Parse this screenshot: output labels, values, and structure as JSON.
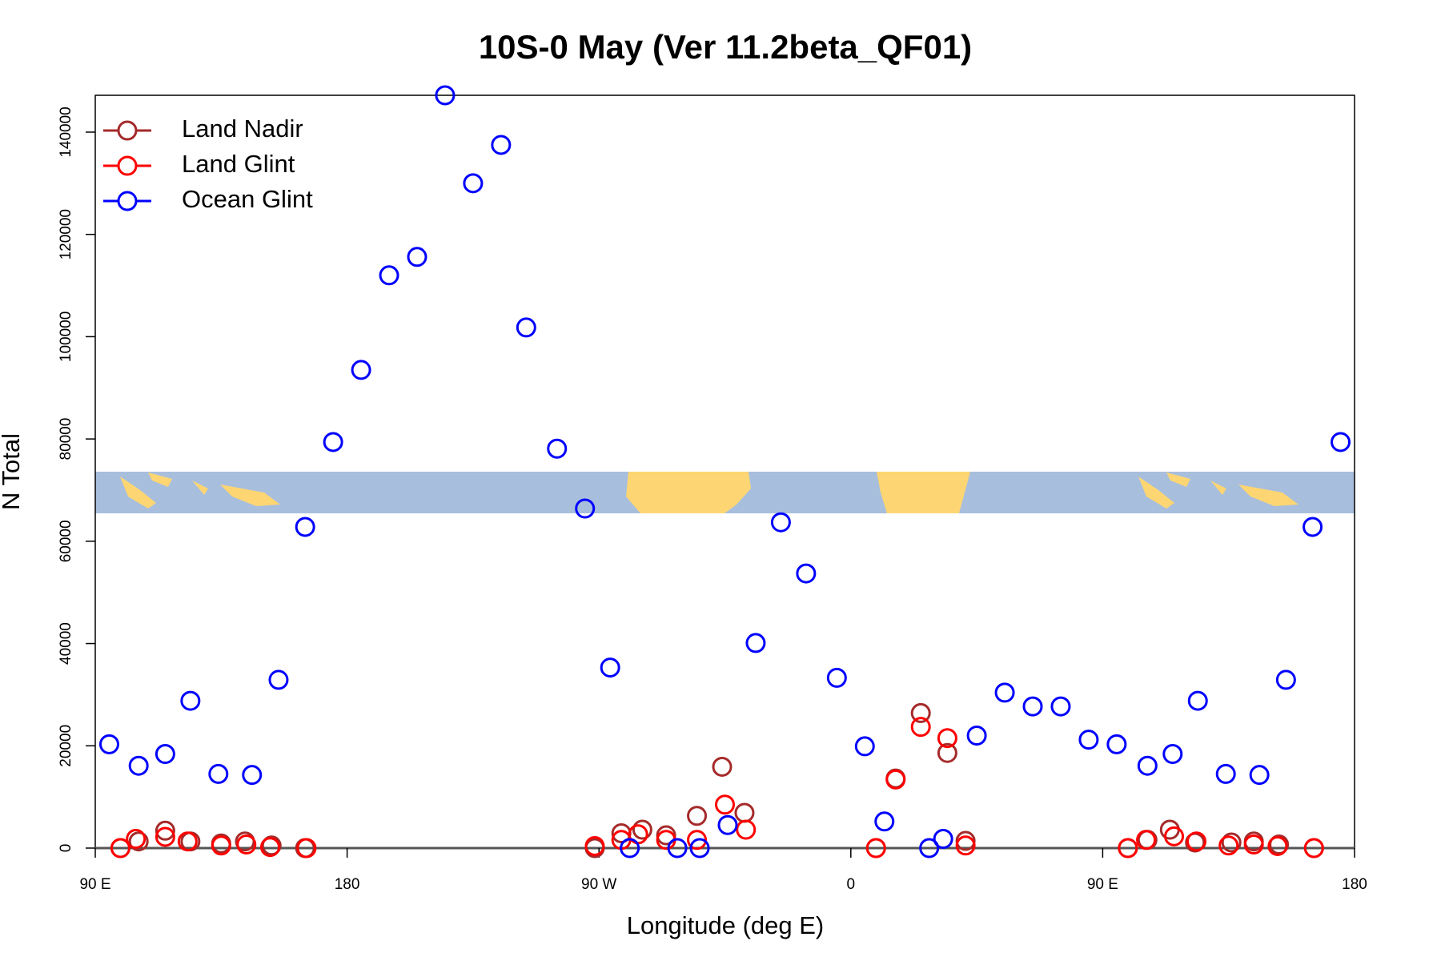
{
  "chart_data": {
    "type": "scatter",
    "title": "10S-0 May (Ver 11.2beta_QF01)",
    "x_label": "Longitude (deg E)",
    "y_label": "N Total",
    "xlim": [
      90,
      540
    ],
    "ylim": [
      0,
      147200
    ],
    "xticks": [
      {
        "value": 90,
        "label": "90 E"
      },
      180,
      {
        "value": 270,
        "label": "90 W"
      },
      {
        "value": 360,
        "label": "0"
      },
      {
        "value": 450,
        "label": "90 E"
      },
      {
        "value": 540,
        "label": "180"
      }
    ],
    "yticks": [
      0,
      20000,
      40000,
      60000,
      80000,
      100000,
      120000,
      140000
    ],
    "grid": false,
    "legend": "topleft",
    "series": [
      {
        "name": "Land Nadir",
        "color": "#a52a2a",
        "x": [
          99,
          105.5,
          115,
          124,
          135,
          143.5,
          153,
          165,
          268.5,
          278,
          285.5,
          294,
          305,
          314,
          322,
          369,
          376,
          385,
          394.5,
          401,
          459,
          466,
          474,
          483,
          496,
          504,
          513,
          525.5
        ],
        "values": [
          0,
          1300,
          3400,
          1300,
          900,
          1300,
          500,
          0,
          0,
          2900,
          3600,
          2500,
          6300,
          15900,
          6900,
          0,
          13600,
          26400,
          18600,
          1400,
          0,
          1600,
          3600,
          1100,
          1100,
          1300,
          700,
          0
        ]
      },
      {
        "name": "Land Glint",
        "color": "#ff0000",
        "x": [
          99,
          104.5,
          115,
          123,
          135,
          144,
          152.5,
          165.5,
          268.5,
          278,
          284,
          294,
          305,
          315,
          322.5,
          369,
          376,
          385,
          394.5,
          401,
          459,
          465.5,
          475.5,
          483.5,
          495,
          504,
          512.5,
          525.5
        ],
        "values": [
          0,
          1800,
          2200,
          1300,
          500,
          700,
          200,
          0,
          400,
          1600,
          2700,
          1600,
          1600,
          8500,
          3600,
          0,
          13400,
          23700,
          21500,
          500,
          0,
          1600,
          2300,
          1300,
          500,
          700,
          400,
          0
        ]
      },
      {
        "name": "Ocean Glint",
        "color": "#0000ff",
        "x": [
          95,
          105.5,
          115,
          124,
          134,
          146,
          155.5,
          165,
          175,
          185,
          195,
          205,
          215,
          225,
          235,
          244,
          255,
          265,
          274,
          281,
          298,
          306,
          316,
          326,
          335,
          344,
          355,
          365,
          372,
          388,
          393,
          405,
          415,
          425,
          435,
          445,
          455,
          466,
          475,
          484,
          494,
          506,
          515.5,
          525,
          535
        ],
        "values": [
          20300,
          16100,
          18400,
          28800,
          14500,
          14300,
          32900,
          62800,
          79400,
          93500,
          112000,
          115600,
          147200,
          130000,
          137500,
          101800,
          78100,
          66400,
          35300,
          0,
          0,
          0,
          4500,
          40100,
          63700,
          53700,
          33300,
          19900,
          5200,
          0,
          1800,
          22000,
          30400,
          27700,
          27700,
          21200,
          20300,
          16100,
          18400,
          28800,
          14500,
          14300,
          32900,
          62800,
          79400
        ]
      }
    ]
  }
}
